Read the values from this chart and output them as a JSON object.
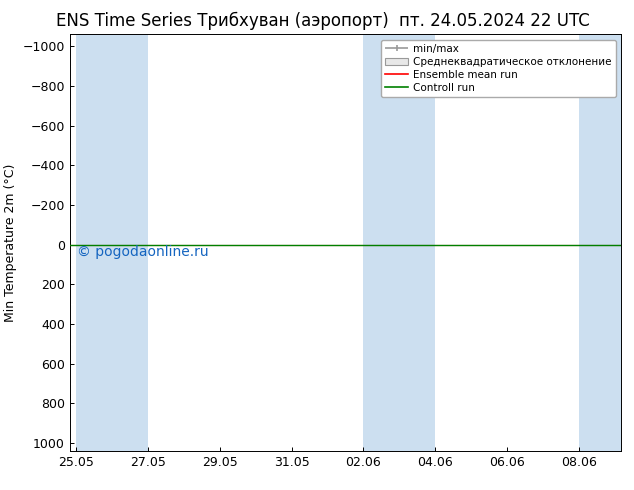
{
  "title_left": "ENS Time Series Трибхуван (аэропорт)",
  "title_right": "пт. 24.05.2024 22 UTC",
  "ylabel": "Min Temperature 2m (°C)",
  "watermark": "© pogodaonline.ru",
  "ylim_top": -1060,
  "ylim_bottom": 1040,
  "yticks": [
    -1000,
    -800,
    -600,
    -400,
    -200,
    0,
    200,
    400,
    600,
    800,
    1000
  ],
  "xtick_labels": [
    "25.05",
    "27.05",
    "29.05",
    "31.05",
    "02.06",
    "04.06",
    "06.06",
    "08.06"
  ],
  "xtick_positions": [
    0,
    2,
    4,
    6,
    8,
    10,
    12,
    14
  ],
  "xlim_left": -0.18,
  "xlim_right": 15.18,
  "shade_ranges": [
    [
      0,
      1
    ],
    [
      1,
      2
    ],
    [
      8,
      9
    ],
    [
      9,
      10
    ],
    [
      14,
      15.18
    ]
  ],
  "shade_color": "#ccdff0",
  "line_color_green": "#008000",
  "line_color_red": "#ff0000",
  "background_color": "#ffffff",
  "title_fontsize": 12,
  "tick_fontsize": 9,
  "ylabel_fontsize": 9,
  "watermark_color": "#1565c0",
  "watermark_fontsize": 9,
  "legend_fontsize": 7.5
}
